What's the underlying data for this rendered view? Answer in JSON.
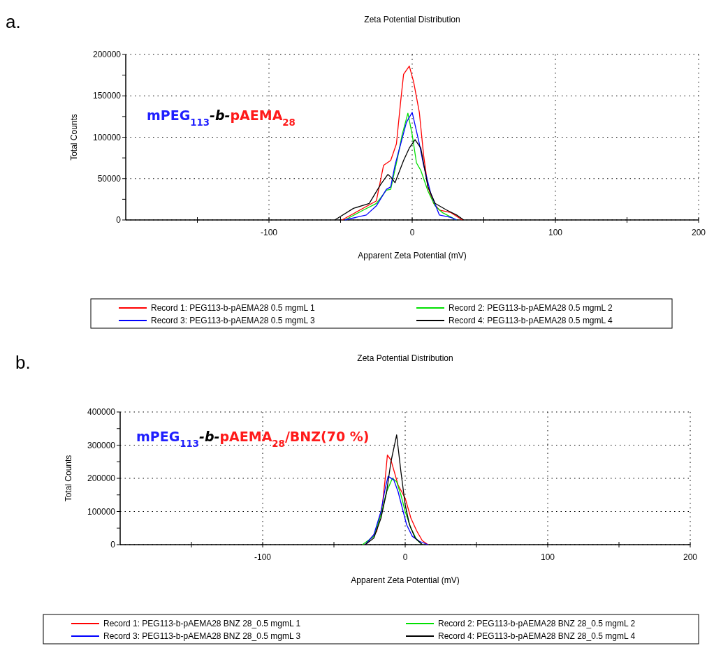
{
  "chart_data": [
    {
      "type": "line",
      "title": "Zeta Potential Distribution",
      "xlabel": "Apparent Zeta Potential (mV)",
      "ylabel": "Total Counts",
      "annotations": [
        "a.",
        "mPEG$_{113}$-b-pAEMA$_{28}$"
      ],
      "xlim": [
        -200,
        200
      ],
      "ylim": [
        0,
        200000
      ],
      "xticks": [
        {
          "value": -150,
          "label": null
        },
        -100,
        {
          "value": -50,
          "label": null
        },
        0,
        {
          "value": 50,
          "label": null
        },
        100,
        {
          "value": 150,
          "label": null
        },
        200
      ],
      "yticks": [
        0,
        {
          "value": 25000,
          "label": null
        },
        50000,
        {
          "value": 75000,
          "label": null
        },
        100000,
        {
          "value": 125000,
          "label": null
        },
        150000,
        {
          "value": 175000,
          "label": null
        },
        200000
      ],
      "grid": true,
      "legend": "bottom",
      "line_style": "solid",
      "series": [
        {
          "name": "Record 1: PEG113-b-pAEMA28 0.5 mgmL 1",
          "color": "#ff0000",
          "x": [
            -49,
            -25,
            -20,
            -15,
            -11,
            -8,
            -6,
            -2,
            1,
            5,
            8,
            11,
            15,
            19,
            27,
            35
          ],
          "values": [
            0,
            23000,
            66000,
            72000,
            92000,
            144000,
            176000,
            186000,
            167000,
            130000,
            78000,
            40000,
            20000,
            12000,
            9000,
            0
          ]
        },
        {
          "name": "Record 2: PEG113-b-pAEMA28 0.5 mgmL 2",
          "color": "#00e000",
          "x": [
            -47,
            -34,
            -25,
            -18,
            -15,
            -10,
            -7,
            -3,
            0,
            3,
            6,
            11,
            16,
            21,
            31
          ],
          "values": [
            0,
            12000,
            20000,
            36000,
            37000,
            77000,
            103000,
            129000,
            103000,
            69000,
            60000,
            35000,
            17000,
            9000,
            0
          ]
        },
        {
          "name": "Record 3: PEG113-b-pAEMA28 0.5 mgmL 3",
          "color": "#0000ff",
          "x": [
            -47,
            -32,
            -25,
            -18,
            -15,
            -12,
            -8,
            -4,
            0,
            5,
            8,
            13,
            19,
            27,
            31
          ],
          "values": [
            0,
            6000,
            17000,
            37000,
            40000,
            66000,
            92000,
            118000,
            130000,
            92000,
            66000,
            32000,
            6000,
            3000,
            0
          ]
        },
        {
          "name": "Record 4: PEG113-b-pAEMA28 0.5 mgmL 4",
          "color": "#000000",
          "x": [
            -54,
            -41,
            -30,
            -22,
            -17,
            -15,
            -12,
            -6,
            -2,
            2,
            6,
            11,
            16,
            24,
            31,
            36
          ],
          "values": [
            0,
            14000,
            20000,
            43000,
            55000,
            52000,
            45000,
            72000,
            87000,
            97000,
            87000,
            40000,
            20000,
            12000,
            6000,
            0
          ]
        }
      ]
    },
    {
      "type": "line",
      "title": "Zeta Potential Distribution",
      "xlabel": "Apparent Zeta Potential (mV)",
      "ylabel": "Total Counts",
      "annotations": [
        "b.",
        "mPEG$_{113}$-b-pAEMA$_{28}$/BNZ(70 %)"
      ],
      "xlim": [
        -200,
        200
      ],
      "ylim": [
        0,
        400000
      ],
      "xticks": [
        {
          "value": -150,
          "label": null
        },
        -100,
        {
          "value": -50,
          "label": null
        },
        0,
        {
          "value": 50,
          "label": null
        },
        100,
        {
          "value": 150,
          "label": null
        },
        200
      ],
      "yticks": [
        0,
        {
          "value": 50000,
          "label": null
        },
        100000,
        {
          "value": 150000,
          "label": null
        },
        200000,
        {
          "value": 250000,
          "label": null
        },
        300000,
        {
          "value": 350000,
          "label": null
        },
        400000
      ],
      "grid": true,
      "legend": "bottom",
      "line_style": "solid",
      "series": [
        {
          "name": "Record 1: PEG113-b-pAEMA28 BNZ 28_0.5 mgmL 1",
          "color": "#ff0000",
          "x": [
            -28,
            -20,
            -16,
            -14,
            -12.5,
            -10,
            -5,
            0,
            4,
            8,
            12,
            16
          ],
          "values": [
            0,
            40000,
            120000,
            200000,
            270000,
            255000,
            180000,
            140000,
            80000,
            42000,
            12000,
            0
          ]
        },
        {
          "name": "Record 2: PEG113-b-pAEMA28 BNZ 28_0.5 mgmL 2",
          "color": "#00e000",
          "x": [
            -30,
            -22,
            -17,
            -13,
            -9,
            -6,
            -3,
            0,
            4,
            8,
            12
          ],
          "values": [
            0,
            25000,
            90000,
            160000,
            200000,
            190000,
            150000,
            100000,
            50000,
            15000,
            0
          ]
        },
        {
          "name": "Record 3: PEG113-b-pAEMA28 BNZ 28_0.5 mgmL 3",
          "color": "#0000ff",
          "x": [
            -28,
            -22,
            -17,
            -14,
            -12,
            -8,
            -5,
            -2,
            1,
            5,
            10,
            16
          ],
          "values": [
            0,
            30000,
            100000,
            170000,
            206000,
            195000,
            160000,
            110000,
            60000,
            25000,
            10000,
            0
          ]
        },
        {
          "name": "Record 4: PEG113-b-pAEMA28 BNZ 28_0.5 mgmL 4",
          "color": "#000000",
          "x": [
            -28,
            -22,
            -17,
            -13,
            -10,
            -6,
            -3,
            0,
            3,
            7,
            12
          ],
          "values": [
            0,
            20000,
            80000,
            160000,
            250000,
            331000,
            220000,
            120000,
            60000,
            20000,
            0
          ]
        }
      ]
    }
  ]
}
